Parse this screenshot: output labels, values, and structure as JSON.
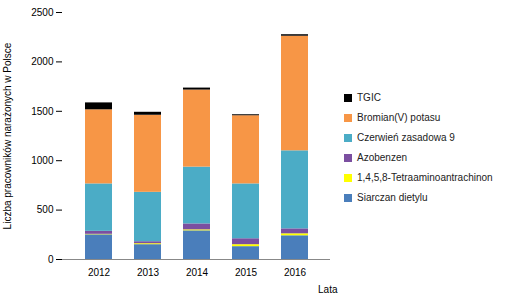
{
  "chart_data": {
    "type": "bar",
    "stacked": true,
    "x_label": "Lata",
    "y_label": "Liczba pracowników narażonych w Polsce",
    "categories": [
      "2012",
      "2013",
      "2014",
      "2015",
      "2016"
    ],
    "series": [
      {
        "name": "Siarczan dietylu",
        "color": "#4a7ebb",
        "values": [
          250,
          150,
          290,
          130,
          240
        ]
      },
      {
        "name": "1,4,5,8-Tetraaminoantrachinon",
        "color": "#ffff00",
        "values": [
          5,
          10,
          10,
          20,
          20
        ]
      },
      {
        "name": "Azobenzen",
        "color": "#7b4fa0",
        "values": [
          30,
          20,
          60,
          60,
          50
        ]
      },
      {
        "name": "Czerwień zasadowa 9",
        "color": "#4bacc6",
        "values": [
          480,
          500,
          575,
          555,
          790
        ]
      },
      {
        "name": "Bromian(V) potasu",
        "color": "#f79646",
        "values": [
          750,
          780,
          780,
          690,
          1160
        ]
      },
      {
        "name": "TGIC",
        "color": "#000000",
        "values": [
          70,
          30,
          20,
          10,
          15
        ]
      }
    ],
    "ylim": [
      0,
      2500
    ],
    "yticks": [
      0,
      500,
      1000,
      1500,
      2000,
      2500
    ],
    "grid": false,
    "legend": "right"
  }
}
